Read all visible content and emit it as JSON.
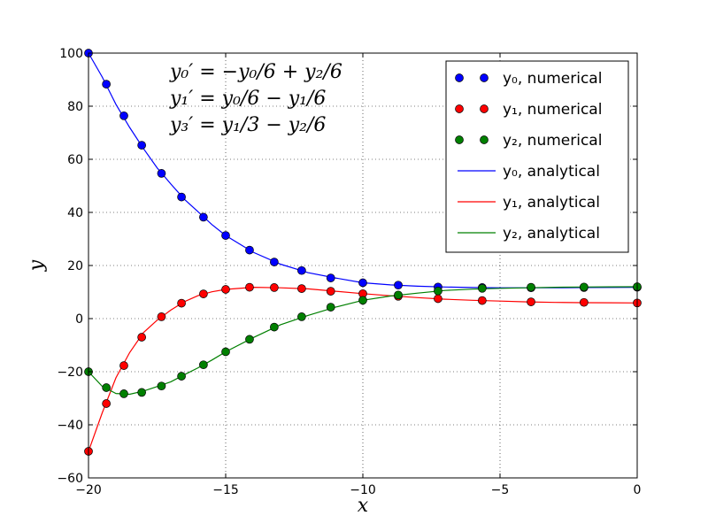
{
  "chart_data": {
    "type": "line",
    "xlabel": "x",
    "ylabel": "y",
    "xlim": [
      -20,
      0
    ],
    "ylim": [
      -60,
      100
    ],
    "xticks": [
      -20,
      -15,
      -10,
      -5,
      0
    ],
    "yticks": [
      -60,
      -40,
      -20,
      0,
      20,
      40,
      60,
      80,
      100
    ],
    "xtick_labels": [
      "−20",
      "−15",
      "−10",
      "−5",
      "0"
    ],
    "ytick_labels": [
      "−60",
      "−40",
      "−20",
      "0",
      "20",
      "40",
      "60",
      "80",
      "100"
    ],
    "grid": true,
    "legend_placement": "top-right",
    "equations": [
      "y₀′ = −y₀/6 + y₂/6",
      "y₁′ = y₀/6 − y₁/6",
      "y₃′ = y₁/3 − y₂/6"
    ],
    "numerical_x": [
      -20,
      -19.35,
      -18.71,
      -18.06,
      -17.34,
      -16.61,
      -15.81,
      -15.0,
      -14.13,
      -13.23,
      -12.23,
      -11.17,
      -10.0,
      -8.71,
      -7.26,
      -5.65,
      -3.87,
      -1.94,
      0
    ],
    "series": [
      {
        "name": "y₀, numerical",
        "kind": "marker",
        "color": "#0000ff",
        "x": "numerical_x",
        "values": [
          100,
          88.3,
          76.4,
          65.3,
          54.7,
          45.8,
          38.2,
          31.3,
          25.8,
          21.3,
          18.1,
          15.3,
          13.5,
          12.6,
          11.9,
          11.7,
          11.6,
          11.7,
          11.8
        ]
      },
      {
        "name": "y₁, numerical",
        "kind": "marker",
        "color": "#ff0000",
        "x": "numerical_x",
        "values": [
          -50,
          -32,
          -17.7,
          -7.0,
          0.7,
          5.8,
          9.3,
          11.0,
          11.8,
          11.7,
          11.3,
          10.3,
          9.4,
          8.4,
          7.5,
          6.8,
          6.3,
          6.1,
          5.9
        ]
      },
      {
        "name": "y₂, numerical",
        "kind": "marker",
        "color": "#008000",
        "x": "numerical_x",
        "values": [
          -20,
          -26,
          -28.3,
          -27.8,
          -25.4,
          -21.7,
          -17.4,
          -12.5,
          -7.8,
          -3.2,
          0.7,
          4.3,
          6.9,
          8.9,
          10.4,
          11.4,
          11.8,
          11.9,
          12.0
        ]
      },
      {
        "name": "y₀, analytical",
        "kind": "line",
        "color": "#0000ff",
        "x": [
          -20,
          -19.5,
          -19,
          -18.5,
          -18,
          -17.5,
          -17,
          -16.5,
          -16,
          -15.5,
          -15,
          -14,
          -13,
          -12,
          -11,
          -10,
          -9,
          -8,
          -7,
          -6,
          -5,
          -4,
          -3,
          -2,
          -1,
          0
        ],
        "values": [
          100,
          91.0,
          80.7,
          72.0,
          64.1,
          56.8,
          50.7,
          44.9,
          40.2,
          35.4,
          31.3,
          25.0,
          20.5,
          17.3,
          15.3,
          13.5,
          12.7,
          12.2,
          11.9,
          11.7,
          11.6,
          11.6,
          11.6,
          11.7,
          11.75,
          11.8
        ]
      },
      {
        "name": "y₁, analytical",
        "kind": "line",
        "color": "#ff0000",
        "x": [
          -20,
          -19.5,
          -19,
          -18.5,
          -18,
          -17.5,
          -17,
          -16.5,
          -16,
          -15.5,
          -15,
          -14,
          -13,
          -12,
          -11,
          -10,
          -9,
          -8,
          -7,
          -6,
          -5,
          -4,
          -3,
          -2,
          -1,
          0
        ],
        "values": [
          -50,
          -35.5,
          -22.3,
          -12.8,
          -5.3,
          -0.6,
          3.2,
          6.4,
          8.7,
          10.1,
          11.0,
          11.8,
          11.6,
          11.2,
          10.3,
          9.4,
          8.6,
          7.9,
          7.3,
          6.9,
          6.6,
          6.3,
          6.1,
          6.0,
          5.95,
          5.9
        ]
      },
      {
        "name": "y₂, analytical",
        "kind": "line",
        "color": "#008000",
        "x": [
          -20,
          -19.5,
          -19,
          -18.5,
          -18,
          -17.5,
          -17,
          -16.5,
          -16,
          -15.5,
          -15,
          -14,
          -13,
          -12,
          -11,
          -10,
          -9,
          -8,
          -7,
          -6,
          -5,
          -4,
          -3,
          -2,
          -1,
          0
        ],
        "values": [
          -20,
          -25.5,
          -28.2,
          -28.5,
          -27.3,
          -25.6,
          -23.8,
          -21.1,
          -18.5,
          -15.6,
          -12.5,
          -7.2,
          -2.3,
          1.2,
          4.3,
          6.9,
          8.5,
          9.6,
          10.6,
          11.1,
          11.4,
          11.6,
          11.8,
          11.9,
          11.95,
          12.0
        ]
      }
    ]
  }
}
